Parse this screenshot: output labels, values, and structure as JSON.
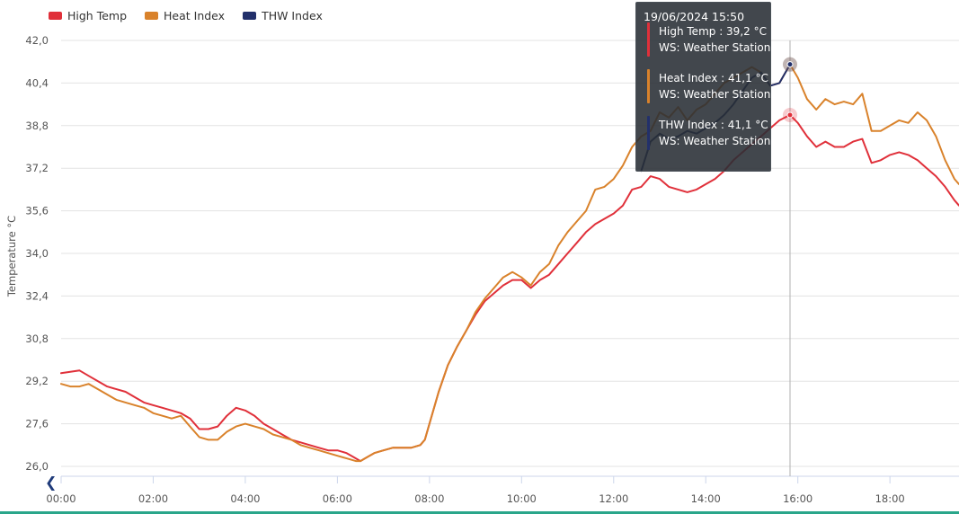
{
  "legend": {
    "items": [
      {
        "label": "High Temp",
        "color": "#e0303a"
      },
      {
        "label": "Heat Index",
        "color": "#d9822b"
      },
      {
        "label": "THW Index",
        "color": "#22306b"
      }
    ]
  },
  "tooltip": {
    "date": "19/06/2024 15:50",
    "entries": [
      {
        "line1": "High Temp : 39,2 °C",
        "line2": "WS: Weather Station",
        "color": "#e0303a"
      },
      {
        "line1": "Heat Index : 41,1 °C",
        "line2": "WS: Weather Station",
        "color": "#d9822b"
      },
      {
        "line1": "THW Index : 41,1 °C",
        "line2": "WS: Weather Station",
        "color": "#22306b"
      }
    ]
  },
  "nav": {
    "prev_icon": "chevron-left-icon",
    "prev_glyph": "❮"
  },
  "chart_data": {
    "type": "line",
    "ylabel": "Temperature °C",
    "ylim": [
      26.0,
      42.0
    ],
    "yticks": [
      "26,0",
      "27,6",
      "29,2",
      "30,8",
      "32,4",
      "34,0",
      "35,6",
      "37,2",
      "38,8",
      "40,4",
      "42,0"
    ],
    "ytick_values": [
      26.0,
      27.6,
      29.2,
      30.8,
      32.4,
      34.0,
      35.6,
      37.2,
      38.8,
      40.4,
      42.0
    ],
    "xlim": [
      0,
      19.5
    ],
    "xticks": [
      "00:00",
      "02:00",
      "04:00",
      "06:00",
      "08:00",
      "10:00",
      "12:00",
      "14:00",
      "16:00",
      "18:00"
    ],
    "xtick_values": [
      0,
      2,
      4,
      6,
      8,
      10,
      12,
      14,
      16,
      18
    ],
    "hover_x": 15.83,
    "grid": true,
    "legend_position": "top-left",
    "series": [
      {
        "name": "High Temp",
        "color": "#e0303a",
        "x": [
          0,
          0.4,
          0.6,
          0.8,
          1.0,
          1.2,
          1.4,
          1.6,
          1.8,
          2.0,
          2.2,
          2.4,
          2.6,
          2.8,
          3.0,
          3.2,
          3.4,
          3.6,
          3.8,
          4.0,
          4.2,
          4.4,
          4.6,
          4.8,
          5.0,
          5.2,
          5.4,
          5.6,
          5.8,
          6.0,
          6.2,
          6.4,
          6.5,
          6.6,
          6.8,
          7.0,
          7.2,
          7.4,
          7.6,
          7.8,
          7.9,
          8.0,
          8.2,
          8.4,
          8.6,
          8.8,
          9.0,
          9.2,
          9.4,
          9.6,
          9.8,
          10.0,
          10.2,
          10.4,
          10.6,
          10.8,
          11.0,
          11.2,
          11.4,
          11.6,
          11.8,
          12.0,
          12.2,
          12.4,
          12.6,
          12.8,
          13.0,
          13.2,
          13.4,
          13.6,
          13.8,
          14.0,
          14.2,
          14.4,
          14.6,
          14.8,
          15.0,
          15.2,
          15.4,
          15.6,
          15.83,
          16.0,
          16.2,
          16.4,
          16.6,
          16.8,
          17.0,
          17.2,
          17.4,
          17.6,
          17.8,
          18.0,
          18.2,
          18.4,
          18.6,
          18.8,
          19.0,
          19.2,
          19.4,
          19.5
        ],
        "values": [
          29.5,
          29.6,
          29.4,
          29.2,
          29.0,
          28.9,
          28.8,
          28.6,
          28.4,
          28.3,
          28.2,
          28.1,
          28.0,
          27.8,
          27.4,
          27.4,
          27.5,
          27.9,
          28.2,
          28.1,
          27.9,
          27.6,
          27.4,
          27.2,
          27.0,
          26.9,
          26.8,
          26.7,
          26.6,
          26.6,
          26.5,
          26.3,
          26.2,
          26.3,
          26.5,
          26.6,
          26.7,
          26.7,
          26.7,
          26.8,
          27.0,
          27.6,
          28.8,
          29.8,
          30.5,
          31.1,
          31.7,
          32.2,
          32.5,
          32.8,
          33.0,
          33.0,
          32.7,
          33.0,
          33.2,
          33.6,
          34.0,
          34.4,
          34.8,
          35.1,
          35.3,
          35.5,
          35.8,
          36.4,
          36.5,
          36.9,
          36.8,
          36.5,
          36.4,
          36.3,
          36.4,
          36.6,
          36.8,
          37.1,
          37.5,
          37.8,
          38.1,
          38.4,
          38.7,
          39.0,
          39.2,
          38.9,
          38.4,
          38.0,
          38.2,
          38.0,
          38.0,
          38.2,
          38.3,
          37.4,
          37.5,
          37.7,
          37.8,
          37.7,
          37.5,
          37.2,
          36.9,
          36.5,
          36.0,
          35.8
        ]
      },
      {
        "name": "Heat Index",
        "color": "#d9822b",
        "x": [
          0,
          0.2,
          0.4,
          0.6,
          0.8,
          1.0,
          1.2,
          1.4,
          1.6,
          1.8,
          2.0,
          2.2,
          2.4,
          2.6,
          2.8,
          3.0,
          3.2,
          3.4,
          3.6,
          3.8,
          4.0,
          4.2,
          4.4,
          4.6,
          4.8,
          5.0,
          5.2,
          5.4,
          5.6,
          5.8,
          6.0,
          6.2,
          6.4,
          6.5,
          6.6,
          6.8,
          7.0,
          7.2,
          7.4,
          7.6,
          7.8,
          7.9,
          8.0,
          8.2,
          8.4,
          8.6,
          8.8,
          9.0,
          9.2,
          9.4,
          9.6,
          9.8,
          10.0,
          10.2,
          10.4,
          10.6,
          10.8,
          11.0,
          11.2,
          11.4,
          11.6,
          11.8,
          12.0,
          12.2,
          12.4,
          12.6,
          12.8,
          13.0,
          13.2,
          13.4,
          13.6,
          13.8,
          14.0,
          14.2,
          14.4,
          14.6,
          14.8,
          15.0,
          15.2,
          15.4,
          15.6,
          15.83,
          16.0,
          16.2,
          16.4,
          16.6,
          16.8,
          17.0,
          17.2,
          17.4,
          17.6,
          17.8,
          18.0,
          18.2,
          18.4,
          18.6,
          18.8,
          19.0,
          19.2,
          19.4,
          19.5
        ],
        "values": [
          29.1,
          29.0,
          29.0,
          29.1,
          28.9,
          28.7,
          28.5,
          28.4,
          28.3,
          28.2,
          28.0,
          27.9,
          27.8,
          27.9,
          27.5,
          27.1,
          27.0,
          27.0,
          27.3,
          27.5,
          27.6,
          27.5,
          27.4,
          27.2,
          27.1,
          27.0,
          26.8,
          26.7,
          26.6,
          26.5,
          26.4,
          26.3,
          26.2,
          26.2,
          26.3,
          26.5,
          26.6,
          26.7,
          26.7,
          26.7,
          26.8,
          27.0,
          27.6,
          28.8,
          29.8,
          30.5,
          31.1,
          31.8,
          32.3,
          32.7,
          33.1,
          33.3,
          33.1,
          32.8,
          33.3,
          33.6,
          34.3,
          34.8,
          35.2,
          35.6,
          36.4,
          36.5,
          36.8,
          37.3,
          38.0,
          38.4,
          38.6,
          39.3,
          39.1,
          39.5,
          39.0,
          39.4,
          39.6,
          40.0,
          40.4,
          40.6,
          40.8,
          41.0,
          40.8,
          40.3,
          40.4,
          41.1,
          40.6,
          39.8,
          39.4,
          39.8,
          39.6,
          39.7,
          39.6,
          40.0,
          38.6,
          38.6,
          38.8,
          39.0,
          38.9,
          39.3,
          39.0,
          38.4,
          37.5,
          36.8,
          36.6
        ]
      },
      {
        "name": "THW Index",
        "color": "#22306b",
        "x": [
          12.6,
          12.8,
          13.0,
          13.2,
          13.4,
          13.6,
          13.8,
          14.0,
          14.2,
          14.4,
          14.6,
          14.8,
          15.0,
          15.2,
          15.4,
          15.6,
          15.83
        ],
        "values": [
          37.1,
          38.2,
          38.5,
          38.3,
          38.4,
          38.6,
          38.5,
          38.7,
          38.9,
          39.2,
          39.6,
          40.1,
          40.6,
          40.8,
          40.3,
          40.4,
          41.1
        ]
      }
    ]
  }
}
